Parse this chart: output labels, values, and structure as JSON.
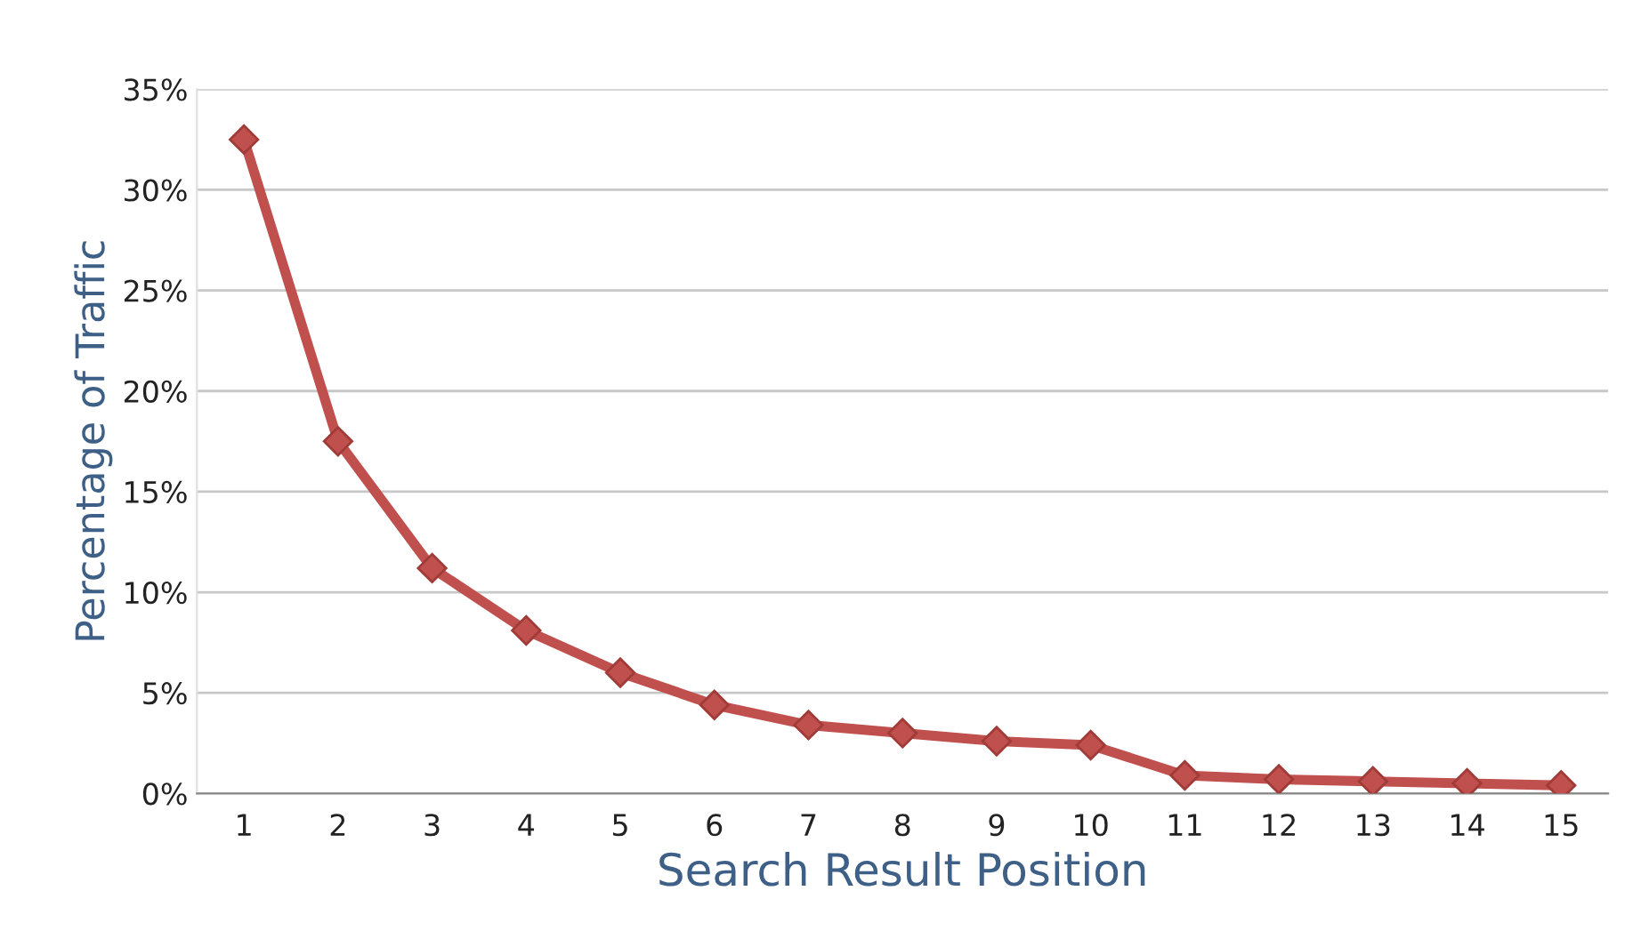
{
  "chart_data": {
    "type": "line",
    "xlabel": "Search Result Position",
    "ylabel": "Percentage of Traffic",
    "categories": [
      "1",
      "2",
      "3",
      "4",
      "5",
      "6",
      "7",
      "8",
      "9",
      "10",
      "11",
      "12",
      "13",
      "14",
      "15"
    ],
    "series": [
      {
        "color": "#c0504d",
        "values": [
          32.5,
          17.5,
          11.2,
          8.1,
          6.0,
          4.4,
          3.4,
          3.0,
          2.6,
          2.4,
          0.9,
          0.7,
          0.6,
          0.5,
          0.4
        ]
      }
    ],
    "ylim": [
      0,
      35
    ],
    "yticks": [
      {
        "value": 0,
        "label": "0%"
      },
      {
        "value": 5,
        "label": "5%"
      },
      {
        "value": 10,
        "label": "10%"
      },
      {
        "value": 15,
        "label": "15%"
      },
      {
        "value": 20,
        "label": "20%"
      },
      {
        "value": 25,
        "label": "25%"
      },
      {
        "value": 30,
        "label": "30%"
      },
      {
        "value": 35,
        "label": "35%"
      }
    ],
    "grid": "y",
    "marker": "diamond",
    "line_style": "solid"
  }
}
